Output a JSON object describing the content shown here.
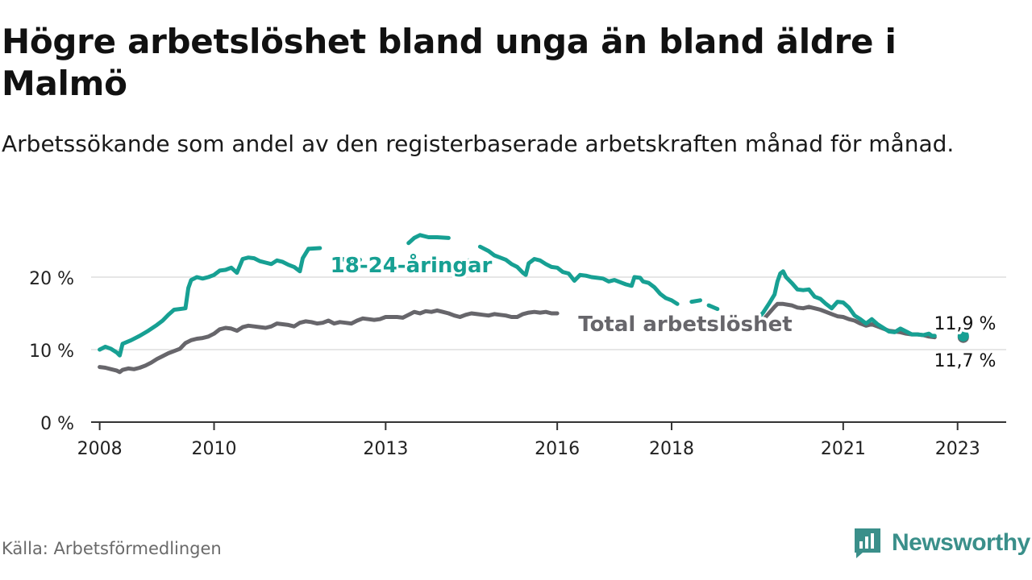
{
  "title": "Högre arbetslöshet bland unga än bland äldre i Malmö",
  "subtitle": "Arbetssökande som andel av den registerbaserade arbetskraften månad för månad.",
  "source": "Källa: Arbetsförmedlingen",
  "brand": "Newsworthy",
  "colors": {
    "youth": "#17a093",
    "total": "#67666b",
    "grid": "#dddddd",
    "axis": "#333333",
    "brand": "#3a8f8a"
  },
  "chart_data": {
    "type": "line",
    "title": "Högre arbetslöshet bland unga än bland äldre i Malmö",
    "xlabel": "",
    "ylabel": "",
    "xlim": [
      2007.85,
      2023.85
    ],
    "ylim": [
      0,
      26
    ],
    "yticks": [
      {
        "value": 0,
        "label": "0 %"
      },
      {
        "value": 10,
        "label": "10 %"
      },
      {
        "value": 20,
        "label": "20 %"
      }
    ],
    "xticks": [
      {
        "value": 2008,
        "label": "2008"
      },
      {
        "value": 2010,
        "label": "2010"
      },
      {
        "value": 2013,
        "label": "2013"
      },
      {
        "value": 2016,
        "label": "2016"
      },
      {
        "value": 2018,
        "label": "2018"
      },
      {
        "value": 2021,
        "label": "2021"
      },
      {
        "value": 2023,
        "label": "2023"
      }
    ],
    "series": [
      {
        "name": "18-24-åringar",
        "color": "#17a093",
        "label": "18-24-åringar",
        "end_label": "11,9 %",
        "points": [
          [
            2008.0,
            10.0
          ],
          [
            2008.1,
            10.4
          ],
          [
            2008.2,
            10.1
          ],
          [
            2008.3,
            9.6
          ],
          [
            2008.35,
            9.2
          ],
          [
            2008.4,
            10.8
          ],
          [
            2008.55,
            11.3
          ],
          [
            2008.7,
            11.9
          ],
          [
            2008.85,
            12.6
          ],
          [
            2009.0,
            13.4
          ],
          [
            2009.1,
            14.0
          ],
          [
            2009.2,
            14.8
          ],
          [
            2009.3,
            15.5
          ],
          [
            2009.4,
            15.6
          ],
          [
            2009.5,
            15.7
          ],
          [
            2009.55,
            18.5
          ],
          [
            2009.6,
            19.6
          ],
          [
            2009.7,
            20.0
          ],
          [
            2009.8,
            19.8
          ],
          [
            2009.9,
            20.0
          ],
          [
            2010.0,
            20.3
          ],
          [
            2010.1,
            20.9
          ],
          [
            2010.2,
            21.0
          ],
          [
            2010.3,
            21.3
          ],
          [
            2010.4,
            20.6
          ],
          [
            2010.5,
            22.5
          ],
          [
            2010.6,
            22.7
          ],
          [
            2010.7,
            22.6
          ],
          [
            2010.8,
            22.2
          ],
          [
            2010.9,
            22.0
          ],
          [
            2011.0,
            21.8
          ],
          [
            2011.1,
            22.3
          ],
          [
            2011.2,
            22.1
          ],
          [
            2011.3,
            21.7
          ],
          [
            2011.4,
            21.4
          ],
          [
            2011.5,
            20.8
          ],
          [
            2011.55,
            22.6
          ],
          [
            2011.65,
            23.9
          ]
        ],
        "segments": [
          [
            [
              2011.65,
              23.9
            ],
            [
              2011.85,
              24.0
            ]
          ],
          [
            [
              2012.25,
              22.5
            ],
            [
              2012.4,
              21.9
            ],
            [
              2012.55,
              22.4
            ]
          ],
          [
            [
              2013.4,
              24.7
            ],
            [
              2013.5,
              25.4
            ],
            [
              2013.6,
              25.8
            ],
            [
              2013.75,
              25.5
            ],
            [
              2013.9,
              25.5
            ],
            [
              2014.1,
              25.4
            ]
          ],
          [
            [
              2014.45,
              22.3
            ],
            [
              2014.6,
              21.8
            ]
          ],
          [
            [
              2014.65,
              24.2
            ],
            [
              2014.8,
              23.6
            ],
            [
              2014.9,
              23.0
            ],
            [
              2015.0,
              22.7
            ],
            [
              2015.1,
              22.4
            ],
            [
              2015.2,
              21.8
            ],
            [
              2015.3,
              21.4
            ],
            [
              2015.4,
              20.6
            ],
            [
              2015.45,
              20.3
            ],
            [
              2015.5,
              21.9
            ],
            [
              2015.6,
              22.5
            ],
            [
              2015.7,
              22.3
            ],
            [
              2015.8,
              21.8
            ],
            [
              2015.9,
              21.4
            ],
            [
              2016.0,
              21.3
            ],
            [
              2016.1,
              20.7
            ],
            [
              2016.2,
              20.5
            ],
            [
              2016.3,
              19.5
            ],
            [
              2016.4,
              20.3
            ],
            [
              2016.5,
              20.2
            ],
            [
              2016.6,
              20.0
            ],
            [
              2016.7,
              19.9
            ],
            [
              2016.8,
              19.8
            ],
            [
              2016.9,
              19.4
            ],
            [
              2017.0,
              19.6
            ],
            [
              2017.1,
              19.3
            ],
            [
              2017.2,
              19.0
            ],
            [
              2017.3,
              18.8
            ],
            [
              2017.35,
              20.0
            ],
            [
              2017.45,
              19.9
            ],
            [
              2017.5,
              19.4
            ],
            [
              2017.6,
              19.2
            ],
            [
              2017.7,
              18.6
            ],
            [
              2017.8,
              17.7
            ],
            [
              2017.9,
              17.1
            ],
            [
              2018.0,
              16.8
            ],
            [
              2018.1,
              16.3
            ]
          ],
          [
            [
              2018.35,
              16.6
            ],
            [
              2018.5,
              16.8
            ]
          ],
          [
            [
              2018.65,
              16.1
            ],
            [
              2018.8,
              15.6
            ]
          ],
          [
            [
              2019.5,
              14.2
            ],
            [
              2019.6,
              15.1
            ],
            [
              2019.7,
              16.3
            ],
            [
              2019.8,
              17.6
            ],
            [
              2019.85,
              19.4
            ],
            [
              2019.9,
              20.5
            ],
            [
              2019.95,
              20.8
            ],
            [
              2020.0,
              20.0
            ],
            [
              2020.1,
              19.2
            ],
            [
              2020.2,
              18.3
            ],
            [
              2020.3,
              18.2
            ],
            [
              2020.4,
              18.3
            ],
            [
              2020.5,
              17.3
            ],
            [
              2020.6,
              17.0
            ],
            [
              2020.7,
              16.3
            ],
            [
              2020.8,
              15.7
            ],
            [
              2020.9,
              16.6
            ],
            [
              2021.0,
              16.5
            ],
            [
              2021.1,
              15.8
            ],
            [
              2021.2,
              14.7
            ],
            [
              2021.3,
              14.2
            ],
            [
              2021.4,
              13.6
            ],
            [
              2021.5,
              14.2
            ],
            [
              2021.6,
              13.5
            ],
            [
              2021.7,
              13.0
            ],
            [
              2021.8,
              12.5
            ],
            [
              2021.9,
              12.4
            ],
            [
              2022.0,
              12.9
            ],
            [
              2022.1,
              12.5
            ],
            [
              2022.2,
              12.1
            ],
            [
              2022.3,
              12.1
            ],
            [
              2022.4,
              12.0
            ],
            [
              2022.5,
              12.2
            ],
            [
              2022.55,
              11.9
            ],
            [
              2022.6,
              11.9
            ]
          ]
        ]
      },
      {
        "name": "Total arbetslöshet",
        "color": "#67666b",
        "label": "Total arbetslöshet",
        "end_label": "11,7 %",
        "points": [
          [
            2008.0,
            7.6
          ],
          [
            2008.1,
            7.5
          ],
          [
            2008.2,
            7.3
          ],
          [
            2008.3,
            7.1
          ],
          [
            2008.35,
            6.9
          ],
          [
            2008.4,
            7.2
          ],
          [
            2008.5,
            7.4
          ],
          [
            2008.6,
            7.3
          ],
          [
            2008.7,
            7.5
          ],
          [
            2008.8,
            7.8
          ],
          [
            2008.9,
            8.2
          ],
          [
            2009.0,
            8.7
          ],
          [
            2009.1,
            9.1
          ],
          [
            2009.2,
            9.5
          ],
          [
            2009.3,
            9.8
          ],
          [
            2009.4,
            10.1
          ],
          [
            2009.5,
            10.9
          ],
          [
            2009.6,
            11.3
          ],
          [
            2009.7,
            11.5
          ],
          [
            2009.8,
            11.6
          ],
          [
            2009.9,
            11.8
          ],
          [
            2010.0,
            12.2
          ],
          [
            2010.1,
            12.8
          ],
          [
            2010.2,
            13.0
          ],
          [
            2010.3,
            12.9
          ],
          [
            2010.4,
            12.6
          ],
          [
            2010.5,
            13.1
          ],
          [
            2010.6,
            13.3
          ],
          [
            2010.7,
            13.2
          ],
          [
            2010.8,
            13.1
          ],
          [
            2010.9,
            13.0
          ],
          [
            2011.0,
            13.2
          ],
          [
            2011.1,
            13.6
          ],
          [
            2011.2,
            13.5
          ],
          [
            2011.3,
            13.4
          ],
          [
            2011.4,
            13.2
          ],
          [
            2011.5,
            13.7
          ],
          [
            2011.6,
            13.9
          ],
          [
            2011.7,
            13.8
          ],
          [
            2011.8,
            13.6
          ],
          [
            2011.9,
            13.7
          ],
          [
            2012.0,
            14.0
          ],
          [
            2012.1,
            13.6
          ],
          [
            2012.2,
            13.8
          ],
          [
            2012.3,
            13.7
          ],
          [
            2012.4,
            13.6
          ],
          [
            2012.5,
            14.0
          ],
          [
            2012.6,
            14.3
          ],
          [
            2012.7,
            14.2
          ],
          [
            2012.8,
            14.1
          ],
          [
            2012.9,
            14.2
          ],
          [
            2013.0,
            14.5
          ],
          [
            2013.1,
            14.5
          ],
          [
            2013.2,
            14.5
          ],
          [
            2013.3,
            14.4
          ],
          [
            2013.4,
            14.8
          ],
          [
            2013.5,
            15.2
          ],
          [
            2013.6,
            15.0
          ],
          [
            2013.7,
            15.3
          ],
          [
            2013.8,
            15.2
          ],
          [
            2013.9,
            15.4
          ],
          [
            2014.0,
            15.2
          ],
          [
            2014.1,
            15.0
          ],
          [
            2014.2,
            14.7
          ],
          [
            2014.3,
            14.5
          ],
          [
            2014.4,
            14.8
          ],
          [
            2014.5,
            15.0
          ],
          [
            2014.6,
            14.9
          ],
          [
            2014.7,
            14.8
          ],
          [
            2014.8,
            14.7
          ],
          [
            2014.9,
            14.9
          ],
          [
            2015.0,
            14.8
          ],
          [
            2015.1,
            14.7
          ],
          [
            2015.2,
            14.5
          ],
          [
            2015.3,
            14.5
          ],
          [
            2015.4,
            14.9
          ],
          [
            2015.5,
            15.1
          ],
          [
            2015.6,
            15.2
          ],
          [
            2015.7,
            15.1
          ],
          [
            2015.8,
            15.2
          ],
          [
            2015.9,
            15.0
          ],
          [
            2016.0,
            15.0
          ]
        ],
        "segments": [
          [
            [
              2019.5,
              13.7
            ],
            [
              2019.6,
              14.1
            ],
            [
              2019.7,
              15.0
            ],
            [
              2019.8,
              15.9
            ],
            [
              2019.85,
              16.3
            ],
            [
              2019.95,
              16.3
            ],
            [
              2020.1,
              16.1
            ],
            [
              2020.2,
              15.8
            ],
            [
              2020.3,
              15.7
            ],
            [
              2020.4,
              15.9
            ],
            [
              2020.5,
              15.7
            ],
            [
              2020.6,
              15.5
            ],
            [
              2020.7,
              15.2
            ],
            [
              2020.8,
              14.9
            ],
            [
              2020.9,
              14.6
            ],
            [
              2021.0,
              14.5
            ],
            [
              2021.1,
              14.2
            ],
            [
              2021.2,
              14.0
            ],
            [
              2021.3,
              13.6
            ],
            [
              2021.4,
              13.3
            ],
            [
              2021.5,
              13.5
            ],
            [
              2021.6,
              13.2
            ],
            [
              2021.7,
              12.9
            ],
            [
              2021.8,
              12.6
            ],
            [
              2021.9,
              12.5
            ],
            [
              2022.0,
              12.4
            ],
            [
              2022.1,
              12.2
            ],
            [
              2022.2,
              12.1
            ],
            [
              2022.3,
              12.1
            ],
            [
              2022.4,
              12.0
            ],
            [
              2022.5,
              11.8
            ],
            [
              2022.6,
              11.7
            ]
          ]
        ]
      }
    ],
    "end_point": {
      "x": 2023.1,
      "youth": 11.9,
      "total": 11.7
    }
  }
}
